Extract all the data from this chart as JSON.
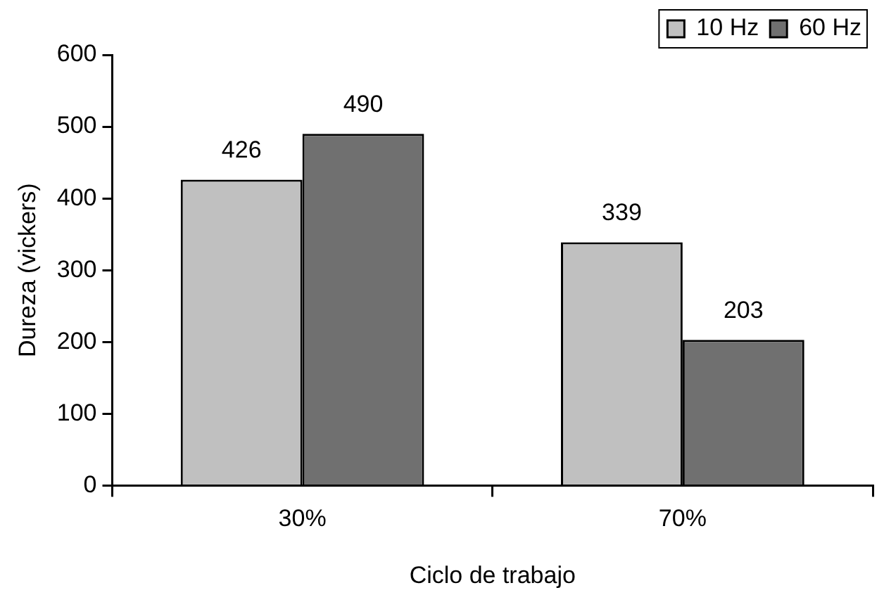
{
  "chart_data": {
    "type": "bar",
    "xlabel": "Ciclo de trabajo",
    "ylabel": "Dureza (vickers)",
    "categories": [
      "30%",
      "70%"
    ],
    "series": [
      {
        "name": "10 Hz",
        "color": "#c0c0c0",
        "values": [
          426,
          339
        ]
      },
      {
        "name": "60 Hz",
        "color": "#707070",
        "values": [
          490,
          203
        ]
      }
    ],
    "ylim": [
      0,
      600
    ],
    "yticks": [
      0,
      100,
      200,
      300,
      400,
      500,
      600
    ],
    "data_labels": true,
    "legend": "top right"
  }
}
